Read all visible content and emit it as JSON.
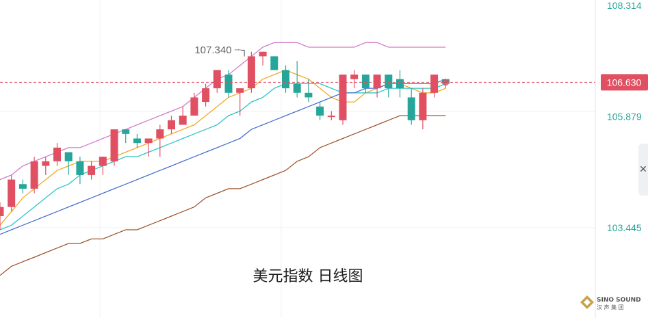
{
  "title": "美元指数 日线图",
  "logo": {
    "text": "SINO SOUND",
    "subtext": "汉 声 集 团"
  },
  "collapse_icon": "close-icon",
  "colors": {
    "up": "#e05062",
    "down": "#26a69a",
    "ma5": "#f5a623",
    "ma10": "#2ec4c4",
    "ma20": "#4a6fd1",
    "boll_upper": "#d17cc8",
    "boll_lower": "#a0522d",
    "current_line": "#e05062",
    "axis_text": "#26a69a",
    "grid": "#f0f0f0"
  },
  "chart_data": {
    "type": "candlestick",
    "title": "美元指数 日线图",
    "y_axis_labels": [
      "108.314",
      "106.630",
      "105.879",
      "103.445"
    ],
    "current_price": "106.630",
    "annotation": "107.340",
    "grid": true,
    "candles": [
      {
        "o": 103.7,
        "h": 104.0,
        "l": 103.4,
        "c": 103.9
      },
      {
        "o": 103.9,
        "h": 104.6,
        "l": 103.8,
        "c": 104.5
      },
      {
        "o": 104.4,
        "h": 104.5,
        "l": 104.2,
        "c": 104.3
      },
      {
        "o": 104.3,
        "h": 105.0,
        "l": 104.2,
        "c": 104.9
      },
      {
        "o": 104.8,
        "h": 105.0,
        "l": 104.6,
        "c": 104.9
      },
      {
        "o": 104.9,
        "h": 105.3,
        "l": 104.8,
        "c": 105.2
      },
      {
        "o": 105.1,
        "h": 105.1,
        "l": 104.6,
        "c": 104.9
      },
      {
        "o": 104.9,
        "h": 105.0,
        "l": 104.4,
        "c": 104.6
      },
      {
        "o": 104.6,
        "h": 104.9,
        "l": 104.5,
        "c": 104.8
      },
      {
        "o": 104.8,
        "h": 105.0,
        "l": 104.6,
        "c": 105.0
      },
      {
        "o": 104.9,
        "h": 105.6,
        "l": 104.8,
        "c": 105.6
      },
      {
        "o": 105.6,
        "h": 105.6,
        "l": 105.3,
        "c": 105.5
      },
      {
        "o": 105.4,
        "h": 105.5,
        "l": 105.2,
        "c": 105.3
      },
      {
        "o": 105.3,
        "h": 105.4,
        "l": 105.0,
        "c": 105.4
      },
      {
        "o": 105.4,
        "h": 105.7,
        "l": 105.0,
        "c": 105.6
      },
      {
        "o": 105.6,
        "h": 105.9,
        "l": 105.5,
        "c": 105.8
      },
      {
        "o": 105.7,
        "h": 106.1,
        "l": 105.7,
        "c": 105.9
      },
      {
        "o": 105.9,
        "h": 106.4,
        "l": 105.9,
        "c": 106.3
      },
      {
        "o": 106.2,
        "h": 106.6,
        "l": 106.1,
        "c": 106.5
      },
      {
        "o": 106.5,
        "h": 106.9,
        "l": 106.4,
        "c": 106.9
      },
      {
        "o": 106.8,
        "h": 106.9,
        "l": 106.3,
        "c": 106.4
      },
      {
        "o": 106.4,
        "h": 106.5,
        "l": 105.9,
        "c": 106.5
      },
      {
        "o": 106.5,
        "h": 107.3,
        "l": 106.4,
        "c": 107.2
      },
      {
        "o": 107.2,
        "h": 107.3,
        "l": 107.0,
        "c": 107.3
      },
      {
        "o": 107.2,
        "h": 107.2,
        "l": 106.9,
        "c": 106.9
      },
      {
        "o": 106.9,
        "h": 107.0,
        "l": 106.4,
        "c": 106.5
      },
      {
        "o": 106.6,
        "h": 107.1,
        "l": 106.3,
        "c": 106.4
      },
      {
        "o": 106.4,
        "h": 106.7,
        "l": 106.2,
        "c": 106.3
      },
      {
        "o": 106.1,
        "h": 106.2,
        "l": 105.8,
        "c": 105.9
      },
      {
        "o": 105.9,
        "h": 106.0,
        "l": 105.8,
        "c": 105.9
      },
      {
        "o": 105.8,
        "h": 106.8,
        "l": 105.7,
        "c": 106.8
      },
      {
        "o": 106.7,
        "h": 106.9,
        "l": 106.5,
        "c": 106.8
      },
      {
        "o": 106.8,
        "h": 106.8,
        "l": 106.4,
        "c": 106.5
      },
      {
        "o": 106.5,
        "h": 106.8,
        "l": 106.3,
        "c": 106.8
      },
      {
        "o": 106.8,
        "h": 106.8,
        "l": 106.3,
        "c": 106.5
      },
      {
        "o": 106.7,
        "h": 106.9,
        "l": 106.3,
        "c": 106.5
      },
      {
        "o": 106.3,
        "h": 106.5,
        "l": 105.7,
        "c": 105.8
      },
      {
        "o": 105.8,
        "h": 106.5,
        "l": 105.6,
        "c": 106.4
      },
      {
        "o": 106.4,
        "h": 106.8,
        "l": 106.3,
        "c": 106.8
      },
      {
        "o": 106.7,
        "h": 106.7,
        "l": 106.5,
        "c": 106.6
      }
    ],
    "series": [
      {
        "key": "ma5",
        "values": [
          103.5,
          103.8,
          104.1,
          104.3,
          104.5,
          104.7,
          104.8,
          104.9,
          104.9,
          104.9,
          105.0,
          105.1,
          105.2,
          105.3,
          105.4,
          105.5,
          105.6,
          105.7,
          105.9,
          106.1,
          106.3,
          106.4,
          106.5,
          106.7,
          106.8,
          106.9,
          106.8,
          106.7,
          106.5,
          106.3,
          106.2,
          106.2,
          106.4,
          106.5,
          106.6,
          106.6,
          106.5,
          106.4,
          106.4,
          106.5
        ]
      },
      {
        "key": "ma10",
        "values": [
          103.4,
          103.5,
          103.7,
          103.9,
          104.1,
          104.3,
          104.4,
          104.6,
          104.7,
          104.8,
          104.9,
          105.0,
          105.0,
          105.1,
          105.2,
          105.3,
          105.4,
          105.5,
          105.6,
          105.7,
          105.9,
          106.0,
          106.2,
          106.3,
          106.5,
          106.6,
          106.6,
          106.6,
          106.6,
          106.5,
          106.4,
          106.4,
          106.4,
          106.4,
          106.5,
          106.5,
          106.5,
          106.5,
          106.5,
          106.6
        ]
      },
      {
        "key": "ma20",
        "values": [
          103.3,
          103.4,
          103.5,
          103.6,
          103.7,
          103.8,
          103.9,
          104.0,
          104.1,
          104.2,
          104.3,
          104.4,
          104.5,
          104.6,
          104.7,
          104.8,
          104.9,
          105.0,
          105.1,
          105.2,
          105.3,
          105.4,
          105.6,
          105.7,
          105.8,
          105.9,
          106.0,
          106.1,
          106.2,
          106.3,
          106.4,
          106.4,
          106.5,
          106.5,
          106.6,
          106.6,
          106.6,
          106.6,
          106.6,
          106.7
        ]
      },
      {
        "key": "boll_upper",
        "values": [
          104.5,
          104.6,
          104.8,
          104.9,
          105.0,
          105.1,
          105.2,
          105.2,
          105.3,
          105.4,
          105.5,
          105.6,
          105.7,
          105.8,
          105.9,
          106.0,
          106.1,
          106.3,
          106.5,
          106.7,
          106.8,
          107.0,
          107.2,
          107.4,
          107.5,
          107.5,
          107.5,
          107.4,
          107.4,
          107.4,
          107.4,
          107.4,
          107.5,
          107.5,
          107.4,
          107.4,
          107.4,
          107.4,
          107.4,
          107.4
        ]
      },
      {
        "key": "boll_lower",
        "values": [
          102.4,
          102.6,
          102.7,
          102.8,
          102.9,
          103.0,
          103.1,
          103.1,
          103.2,
          103.2,
          103.3,
          103.4,
          103.4,
          103.5,
          103.6,
          103.7,
          103.8,
          103.9,
          104.1,
          104.2,
          104.3,
          104.3,
          104.4,
          104.5,
          104.6,
          104.7,
          104.9,
          105.0,
          105.2,
          105.3,
          105.4,
          105.5,
          105.6,
          105.7,
          105.8,
          105.9,
          105.9,
          105.9,
          105.9,
          105.9
        ]
      }
    ]
  }
}
